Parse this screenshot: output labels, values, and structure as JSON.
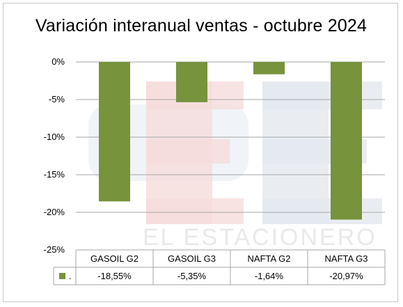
{
  "chart_data": {
    "type": "bar",
    "title": "Variación interanual ventas - octubre  2024",
    "categories": [
      "GASOIL G2",
      "GASOIL G3",
      "NAFTA G2",
      "NAFTA G3"
    ],
    "values": [
      -18.55,
      -5.35,
      -1.64,
      -20.97
    ],
    "value_labels": [
      "-18,55%",
      "-5,35%",
      "-1,64%",
      "-20,97%"
    ],
    "y_ticks": [
      0,
      -5,
      -10,
      -15,
      -20,
      -25
    ],
    "y_tick_labels": [
      "0%",
      "-5%",
      "-10%",
      "-15%",
      "-20%",
      "-25%"
    ],
    "ylim": [
      -25,
      0
    ],
    "grid": true,
    "legend_marker": ".",
    "data_table": true,
    "bar_color": "#77933c",
    "watermark": "EL ESTACIONERO"
  }
}
